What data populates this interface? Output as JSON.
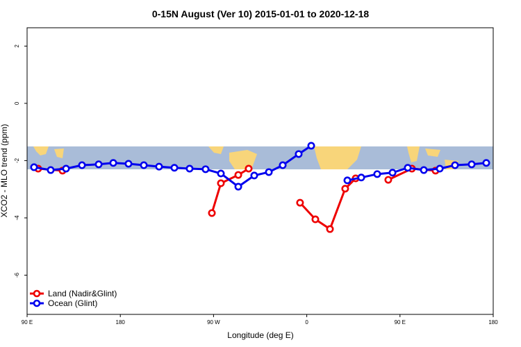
{
  "chart_data": {
    "type": "line",
    "title": "0-15N August (Ver 10)   2015-01-01 to 2020-12-18",
    "x_label": "Longitude (deg E)",
    "y_label": "XCO2 - MLO trend (ppm)",
    "xlim": [
      90,
      540
    ],
    "ylim": [
      -7.37,
      2.64
    ],
    "xticks": [
      {
        "value": 90,
        "label": "90 E"
      },
      180,
      {
        "value": 270,
        "label": "90 W"
      },
      {
        "value": 360,
        "label": "0"
      },
      {
        "value": 450,
        "label": "90 E"
      },
      {
        "value": 540,
        "label": "180"
      }
    ],
    "yticks": [
      2,
      0,
      -2,
      -4,
      -6
    ],
    "legend": "bottom-left",
    "series": [
      {
        "name": "Land (Nadir&Glint)",
        "color": "#ee0000",
        "x": [
          100.7,
          124.2,
          200,
          268.4,
          277.1,
          293.9,
          303.9,
          330,
          353.5,
          368.3,
          382.4,
          397.1,
          407.2,
          420,
          438.7,
          461.5,
          484.3
        ],
        "values": [
          -2.28,
          -2.35,
          null,
          -3.83,
          -2.79,
          -2.5,
          -2.28,
          null,
          -3.47,
          -4.05,
          -4.39,
          -2.98,
          -2.62,
          null,
          -2.67,
          -2.28,
          -2.35
        ]
      },
      {
        "name": "Ocean (Glint)",
        "color": "#0000ee",
        "x": [
          96.7,
          112.8,
          127.6,
          143.0,
          159.1,
          173.2,
          187.9,
          202.7,
          217.4,
          232.2,
          246.9,
          262.3,
          277.1,
          293.9,
          309.3,
          323.4,
          336.8,
          352.2,
          364.3,
          380,
          399.2,
          412.6,
          428.0,
          442.8,
          457.5,
          473.0,
          488.4,
          503.1,
          519.2,
          533.3
        ],
        "values": [
          -2.23,
          -2.33,
          -2.28,
          -2.16,
          -2.13,
          -2.08,
          -2.11,
          -2.16,
          -2.21,
          -2.25,
          -2.28,
          -2.3,
          -2.45,
          -2.91,
          -2.52,
          -2.4,
          -2.16,
          -1.77,
          -1.48,
          null,
          -2.69,
          -2.59,
          -2.47,
          -2.42,
          -2.25,
          -2.33,
          -2.28,
          -2.16,
          -2.13,
          -2.08
        ]
      }
    ]
  }
}
